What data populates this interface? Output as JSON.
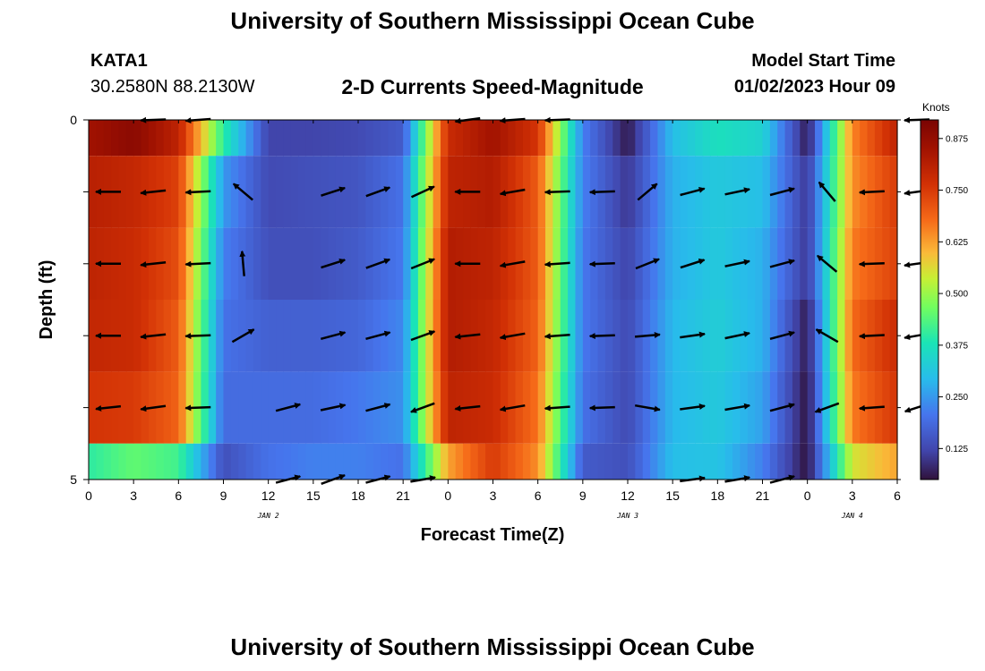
{
  "header": {
    "title": "University of Southern Mississippi Ocean Cube",
    "station": "KATA1",
    "coords": "30.2580N  88.2130W",
    "chart_title": "2-D Currents Speed-Magnitude",
    "start_label": "Model Start Time",
    "start_value": "01/02/2023 Hour 09",
    "units": "Knots"
  },
  "footer": {
    "title": "University of Southern Mississippi Ocean Cube"
  },
  "chart_data": {
    "type": "heatmap",
    "title": "2-D Currents Speed-Magnitude",
    "xlabel": "Forecast Time(Z)",
    "ylabel": "Depth (ft)",
    "colorbar_label": "Knots",
    "x_tick_labels": [
      "0",
      "3",
      "6",
      "9",
      "12",
      "15",
      "18",
      "21",
      "0",
      "3",
      "6",
      "9",
      "12",
      "15",
      "18",
      "21",
      "0",
      "3",
      "6"
    ],
    "day_labels": [
      {
        "label": "JAN 2",
        "at_tick": 4
      },
      {
        "label": "JAN 3",
        "at_tick": 12
      },
      {
        "label": "JAN 4",
        "at_tick": 17
      }
    ],
    "y_tick_labels": [
      "0",
      "5"
    ],
    "y_range": [
      0,
      5
    ],
    "colorbar_ticks": [
      "0.125",
      "0.250",
      "0.375",
      "0.500",
      "0.625",
      "0.750",
      "0.875"
    ],
    "colorbar_range": [
      0.05,
      0.92
    ],
    "depth_levels_ft": [
      0,
      1,
      2,
      3,
      4,
      5
    ],
    "time_hours": [
      0,
      3,
      6,
      9,
      12,
      15,
      18,
      21,
      24,
      27,
      30,
      33,
      36,
      39,
      42,
      45,
      48,
      51,
      54
    ],
    "speed_knots": [
      [
        0.85,
        0.89,
        0.8,
        0.4,
        0.12,
        0.12,
        0.13,
        0.16,
        0.78,
        0.85,
        0.76,
        0.22,
        0.06,
        0.3,
        0.37,
        0.34,
        0.06,
        0.65,
        0.8
      ],
      [
        0.81,
        0.79,
        0.74,
        0.25,
        0.13,
        0.14,
        0.15,
        0.2,
        0.8,
        0.82,
        0.7,
        0.22,
        0.1,
        0.28,
        0.32,
        0.3,
        0.1,
        0.64,
        0.75
      ],
      [
        0.8,
        0.78,
        0.72,
        0.22,
        0.14,
        0.14,
        0.16,
        0.21,
        0.82,
        0.8,
        0.7,
        0.21,
        0.12,
        0.28,
        0.32,
        0.28,
        0.1,
        0.66,
        0.74
      ],
      [
        0.79,
        0.78,
        0.7,
        0.2,
        0.17,
        0.17,
        0.18,
        0.23,
        0.82,
        0.79,
        0.69,
        0.21,
        0.13,
        0.29,
        0.33,
        0.28,
        0.06,
        0.68,
        0.78
      ],
      [
        0.76,
        0.75,
        0.69,
        0.19,
        0.19,
        0.19,
        0.21,
        0.24,
        0.8,
        0.78,
        0.67,
        0.2,
        0.13,
        0.29,
        0.32,
        0.26,
        0.05,
        0.66,
        0.76
      ],
      [
        0.4,
        0.45,
        0.42,
        0.14,
        0.2,
        0.22,
        0.22,
        0.2,
        0.62,
        0.75,
        0.64,
        0.16,
        0.14,
        0.3,
        0.31,
        0.22,
        0.05,
        0.55,
        0.62
      ]
    ],
    "vector_rows": [
      {
        "depth": 0,
        "dirs": [
          null,
          182,
          184,
          null,
          null,
          null,
          null,
          null,
          188,
          184,
          182,
          null,
          null,
          null,
          null,
          null,
          null,
          null,
          182
        ]
      },
      {
        "depth": 1,
        "dirs": [
          180,
          186,
          183,
          140,
          null,
          18,
          20,
          25,
          180,
          190,
          182,
          182,
          40,
          15,
          12,
          15,
          130,
          183,
          188
        ]
      },
      {
        "depth": 2,
        "dirs": [
          180,
          186,
          183,
          95,
          null,
          18,
          20,
          22,
          180,
          190,
          184,
          182,
          22,
          18,
          12,
          15,
          140,
          182,
          188
        ]
      },
      {
        "depth": 3,
        "dirs": [
          180,
          186,
          182,
          30,
          null,
          15,
          15,
          20,
          186,
          190,
          184,
          182,
          5,
          8,
          12,
          15,
          150,
          183,
          190
        ]
      },
      {
        "depth": 4,
        "dirs": [
          186,
          188,
          182,
          null,
          15,
          12,
          15,
          200,
          186,
          190,
          184,
          182,
          350,
          8,
          10,
          15,
          200,
          184,
          198
        ]
      },
      {
        "depth": 5,
        "dirs": [
          null,
          null,
          null,
          null,
          15,
          20,
          15,
          10,
          null,
          null,
          null,
          null,
          null,
          8,
          10,
          15,
          null,
          null,
          null
        ]
      }
    ],
    "grid": false
  }
}
